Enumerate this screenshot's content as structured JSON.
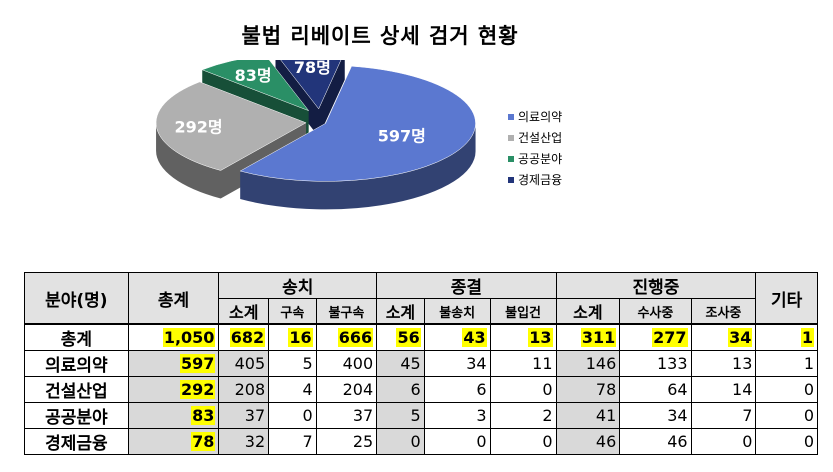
{
  "chart_data": {
    "type": "pie",
    "title": "불법 리베이트 상세 검거 현황",
    "categories": [
      "의료의약",
      "건설산업",
      "공공분야",
      "경제금융"
    ],
    "values": [
      597,
      292,
      83,
      78
    ],
    "labels": [
      "597명",
      "292명",
      "83명",
      "78명"
    ],
    "colors": [
      "#5b78d0",
      "#b0b0b0",
      "#2a8f66",
      "#22357a"
    ],
    "legend_position": "right"
  },
  "table": {
    "header": {
      "field": "분야(명)",
      "total": "총계",
      "groups": [
        "송치",
        "종결",
        "진행중"
      ],
      "other": "기타",
      "subs": [
        "소계",
        "구속",
        "불구속",
        "소계",
        "불송치",
        "불입건",
        "소계",
        "수사중",
        "조사중"
      ]
    },
    "rows": [
      {
        "label": "총계",
        "cells": [
          "1,050",
          "682",
          "16",
          "666",
          "56",
          "43",
          "13",
          "311",
          "277",
          "34",
          "1"
        ]
      },
      {
        "label": "의료의약",
        "cells": [
          "597",
          "405",
          "5",
          "400",
          "45",
          "34",
          "11",
          "146",
          "133",
          "13",
          "1"
        ]
      },
      {
        "label": "건설산업",
        "cells": [
          "292",
          "208",
          "4",
          "204",
          "6",
          "6",
          "0",
          "78",
          "64",
          "14",
          "0"
        ]
      },
      {
        "label": "공공분야",
        "cells": [
          "83",
          "37",
          "0",
          "37",
          "5",
          "3",
          "2",
          "41",
          "34",
          "7",
          "0"
        ]
      },
      {
        "label": "경제금융",
        "cells": [
          "78",
          "32",
          "7",
          "25",
          "0",
          "0",
          "0",
          "46",
          "46",
          "0",
          "0"
        ]
      }
    ]
  }
}
